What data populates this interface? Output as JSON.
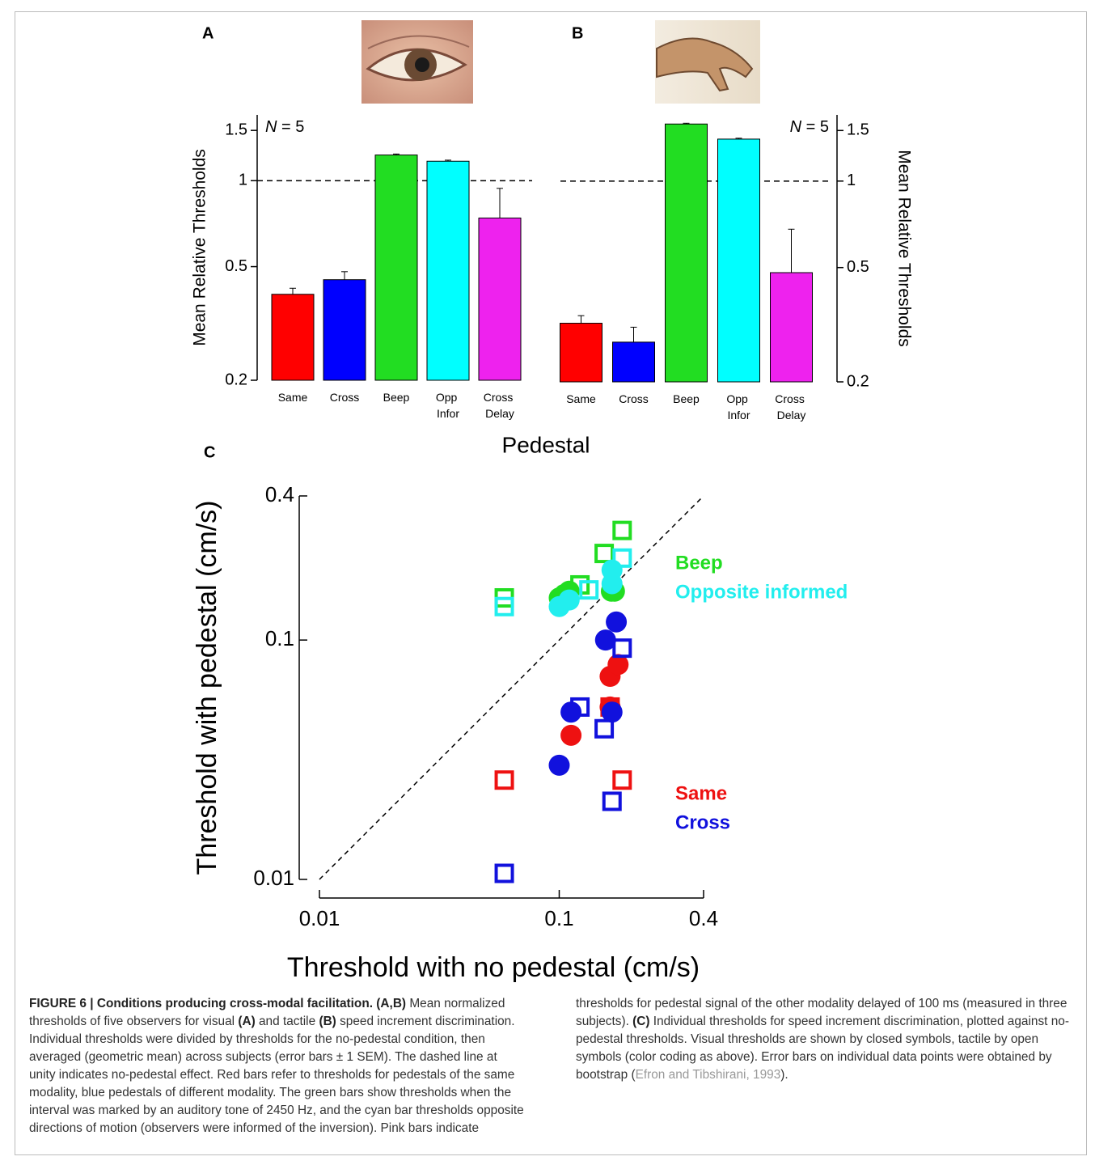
{
  "chart_data": [
    {
      "type": "bar",
      "panel": "A",
      "annotation": "N = 5",
      "ylabel": "Mean Relative Thresholds",
      "yscale": "log",
      "axis_side": "left",
      "categories": [
        "Same",
        "Cross",
        "Beep",
        "Opp Infor",
        "Cross Delay"
      ],
      "values": [
        0.4,
        0.45,
        1.23,
        1.17,
        0.74
      ],
      "errors": [
        0.02,
        0.03,
        0.01,
        0.01,
        0.2
      ],
      "colors": [
        "#ff0000",
        "#0000ff",
        "#22dd22",
        "#00ffff",
        "#ee22ee"
      ],
      "ylim": [
        0.2,
        1.7
      ],
      "yticks": [
        0.2,
        0.5,
        1,
        1.5
      ],
      "reference_line": 1
    },
    {
      "type": "bar",
      "panel": "B",
      "annotation": "N = 5",
      "ylabel": "Mean Relative Thresholds",
      "yscale": "log",
      "axis_side": "right",
      "categories": [
        "Same",
        "Cross",
        "Beep",
        "Opp Infor",
        "Cross Delay"
      ],
      "values": [
        0.32,
        0.275,
        1.58,
        1.4,
        0.48
      ],
      "errors": [
        0.02,
        0.035,
        0.01,
        0.01,
        0.2
      ],
      "colors": [
        "#ff0000",
        "#0000ff",
        "#22dd22",
        "#00ffff",
        "#ee22ee"
      ],
      "ylim": [
        0.2,
        1.7
      ],
      "yticks": [
        0.2,
        0.5,
        1,
        1.5
      ],
      "reference_line": 1
    },
    {
      "type": "scatter",
      "panel": "C",
      "title": "Pedestal",
      "xlabel": "Threshold with no pedestal (cm/s)",
      "ylabel": "Threshold with pedestal (cm/s)",
      "xscale": "log",
      "yscale": "log",
      "xlim": [
        0.01,
        0.4
      ],
      "ylim": [
        0.01,
        0.4
      ],
      "xticks": [
        0.01,
        0.1,
        0.4
      ],
      "yticks": [
        0.01,
        0.1,
        0.4
      ],
      "series": [
        {
          "name": "Beep",
          "color": "#22dd22",
          "closed": {
            "x": [
              0.1,
              0.105,
              0.11,
              0.165,
              0.17
            ],
            "y": [
              0.15,
              0.155,
              0.16,
              0.16,
              0.16
            ]
          },
          "open": {
            "x": [
              0.059,
              0.122,
              0.154,
              0.183
            ],
            "y": [
              0.15,
              0.17,
              0.23,
              0.287
            ]
          }
        },
        {
          "name": "Opposite informed",
          "color": "#22eeee",
          "closed": {
            "x": [
              0.1,
              0.11,
              0.166,
              0.166
            ],
            "y": [
              0.138,
              0.147,
              0.196,
              0.172
            ]
          },
          "open": {
            "x": [
              0.059,
              0.133,
              0.183
            ],
            "y": [
              0.138,
              0.162,
              0.22
            ]
          }
        },
        {
          "name": "Same",
          "color": "#ee1111",
          "closed": {
            "x": [
              0.112,
              0.163,
              0.176,
              0.163
            ],
            "y": [
              0.04,
              0.0705,
              0.079,
              0.0525
            ]
          },
          "open": {
            "x": [
              0.059,
              0.183,
              0.163
            ],
            "y": [
              0.026,
              0.026,
              0.0525
            ]
          }
        },
        {
          "name": "Cross",
          "color": "#1111dd",
          "closed": {
            "x": [
              0.1,
              0.112,
              0.166,
              0.156,
              0.173
            ],
            "y": [
              0.03,
              0.05,
              0.05,
              0.1,
              0.119
            ]
          },
          "open": {
            "x": [
              0.059,
              0.122,
              0.154,
              0.183,
              0.166
            ],
            "y": [
              0.0106,
              0.0525,
              0.0426,
              0.0925,
              0.0212
            ]
          }
        }
      ]
    }
  ],
  "caption": {
    "segments": [
      {
        "text": "FIGURE 6 | Conditions producing cross-modal facilitation.",
        "style": "bold"
      },
      {
        "text": " ",
        "style": "plain"
      },
      {
        "text": "(A,B)",
        "style": "bold"
      },
      {
        "text": " Mean normalized thresholds of five observers for visual ",
        "style": "plain"
      },
      {
        "text": "(A)",
        "style": "bold"
      },
      {
        "text": " and tactile ",
        "style": "plain"
      },
      {
        "text": "(B)",
        "style": "bold"
      },
      {
        "text": " speed increment discrimination. Individual thresholds were divided by thresholds for the no-pedestal condition, then averaged (geometric mean) across subjects (error bars ± 1 SEM). The dashed line at unity indicates no-pedestal effect. Red bars refer to thresholds for pedestals of the same modality, blue pedestals of different modality. The green bars show thresholds when the interval was marked by an auditory tone of 2450 Hz, and the cyan bar thresholds opposite directions of motion (observers were informed of the inversion). Pink bars indicate thresholds for pedestal signal of the other modality delayed of 100 ms (measured in three subjects). ",
        "style": "plain"
      },
      {
        "text": "(C)",
        "style": "bold"
      },
      {
        "text": " Individual thresholds for speed increment discrimination, plotted against no-pedestal thresholds. Visual thresholds are shown by closed symbols, tactile by open symbols (color coding as above). Error bars on individual data points were obtained by bootstrap (",
        "style": "plain"
      },
      {
        "text": "Efron and Tibshirani, 1993",
        "style": "ref"
      },
      {
        "text": ").",
        "style": "plain"
      }
    ]
  }
}
